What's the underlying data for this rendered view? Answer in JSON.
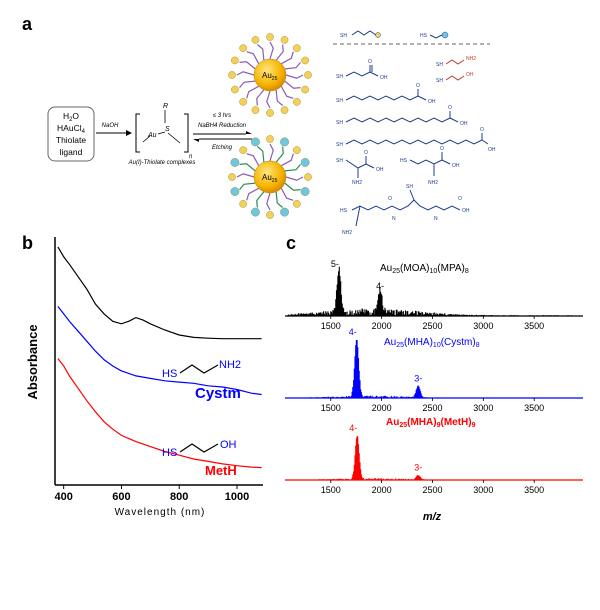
{
  "panels": {
    "a": "a",
    "b": "b",
    "c": "c"
  },
  "scheme": {
    "box_lines": [
      "H2O",
      "HAuCl4",
      "Thiolate",
      "ligand"
    ],
    "box_h2o": "H",
    "box_h2o_sub": "2",
    "box_h2o_end": "O",
    "box_hauc": "HAuCl",
    "box_hauc_sub": "4",
    "box_thiolate": "Thiolate",
    "box_ligand": "ligand",
    "arrow_label": "NaOH",
    "complex_R": "R",
    "complex_S": "S",
    "complex_Au": "Au",
    "complex_n": "n",
    "complex_caption": "Au(I)-Thiolate complexes",
    "cond_line1": "≤ 3 hrs",
    "cond_line2": "NaBH4 Reduction",
    "cond_line3": "Etching",
    "cluster_core": "Au",
    "cluster_core_sub": "25",
    "lig_nh2": "NH2",
    "lig_oh": "OH",
    "lig_sh": "SH",
    "lig_o": "O",
    "lig_hs": "HS",
    "lig_s": "S",
    "lig_n": "N"
  },
  "chart_data": [
    {
      "type": "line",
      "panel": "b",
      "xlabel": "Wavelength (nm)",
      "ylabel": "Absorbance",
      "xlim": [
        370,
        1090
      ],
      "x_ticks": [
        400,
        600,
        800,
        1000
      ],
      "series": [
        {
          "color": "#000000",
          "x": [
            380,
            400,
            420,
            450,
            480,
            510,
            540,
            570,
            600,
            625,
            650,
            675,
            700,
            750,
            800,
            850,
            900,
            950,
            1000,
            1050,
            1085
          ],
          "y": [
            9.6,
            9.2,
            8.9,
            8.4,
            7.9,
            7.3,
            6.9,
            6.6,
            6.5,
            6.6,
            6.75,
            6.65,
            6.5,
            6.25,
            6.05,
            5.95,
            5.92,
            5.9,
            5.9,
            5.9,
            5.9
          ]
        },
        {
          "color": "#0000ff",
          "x": [
            380,
            400,
            420,
            450,
            480,
            510,
            540,
            570,
            600,
            650,
            700,
            750,
            800,
            850,
            900,
            950,
            1000,
            1050,
            1085
          ],
          "y": [
            7.2,
            6.9,
            6.6,
            6.2,
            5.8,
            5.4,
            5.05,
            4.8,
            4.6,
            4.4,
            4.3,
            4.2,
            4.15,
            4.1,
            4.0,
            3.95,
            3.85,
            3.7,
            3.65
          ]
        },
        {
          "color": "#ff0000",
          "x": [
            380,
            400,
            420,
            450,
            480,
            510,
            540,
            570,
            600,
            650,
            700,
            750,
            800,
            850,
            900,
            950,
            1000,
            1050,
            1085
          ],
          "y": [
            5.1,
            4.8,
            4.4,
            3.9,
            3.4,
            2.95,
            2.55,
            2.25,
            2.0,
            1.75,
            1.55,
            1.35,
            1.2,
            1.05,
            0.95,
            0.85,
            0.78,
            0.72,
            0.7
          ]
        }
      ],
      "annotations": [
        {
          "text": "HS",
          "color": "#0000ff"
        },
        {
          "text": "NH2",
          "color": "#0000ff"
        },
        {
          "text": "Cystm",
          "color": "#0000ff"
        },
        {
          "text": "HS",
          "color": "#0000ff"
        },
        {
          "text": "OH",
          "color": "#0000ff"
        },
        {
          "text": "MetH",
          "color": "#ff0000"
        }
      ]
    },
    {
      "type": "line",
      "panel": "c",
      "xlabel": "m/z",
      "xlim": [
        1050,
        3980
      ],
      "x_ticks": [
        1500,
        2000,
        2500,
        3000,
        3500
      ],
      "series": [
        {
          "name": "Au25(MOA)10(MPA)8",
          "color": "#000000",
          "peaks": [
            {
              "mz": 1580,
              "height": 1.0,
              "label": "5-"
            },
            {
              "mz": 1985,
              "height": 0.5,
              "label": "4-"
            }
          ]
        },
        {
          "name": "Au25(MHA)10(Cystm)8",
          "color": "#0000ff",
          "peaks": [
            {
              "mz": 1755,
              "height": 1.0,
              "label": "4-"
            },
            {
              "mz": 2360,
              "height": 0.2,
              "label": "3-"
            }
          ]
        },
        {
          "name": "Au25(MHA)9(MetH)9",
          "color": "#ff0000",
          "peaks": [
            {
              "mz": 1760,
              "height": 1.0,
              "label": "4-"
            },
            {
              "mz": 2360,
              "height": 0.1,
              "label": "3-"
            }
          ]
        }
      ]
    }
  ],
  "spectra_labels": {
    "s1_main": "Au",
    "s1_sub1": "25",
    "s1_mid": "(MOA)",
    "s1_sub2": "10",
    "s1_mid2": "(MPA)",
    "s1_sub3": "8",
    "s2_main": "Au",
    "s2_sub1": "25",
    "s2_mid": "(MHA)",
    "s2_sub2": "10",
    "s2_mid2": "(Cystm)",
    "s2_sub3": "8",
    "s3_main": "Au",
    "s3_sub1": "25",
    "s3_mid": "(MHA)",
    "s3_sub2": "9",
    "s3_mid2": "(MetH)",
    "s3_sub3": "9"
  },
  "colors": {
    "black_series": "#000000",
    "blue_series": "#0000ff",
    "red_series": "#ff0000",
    "gold_core": "#f5b400",
    "ligand_purple": "#8a5bb8",
    "head_yellow": "#f2d15a",
    "head_cyan": "#6cc8e0",
    "chem_blue": "#1e3c8c"
  }
}
